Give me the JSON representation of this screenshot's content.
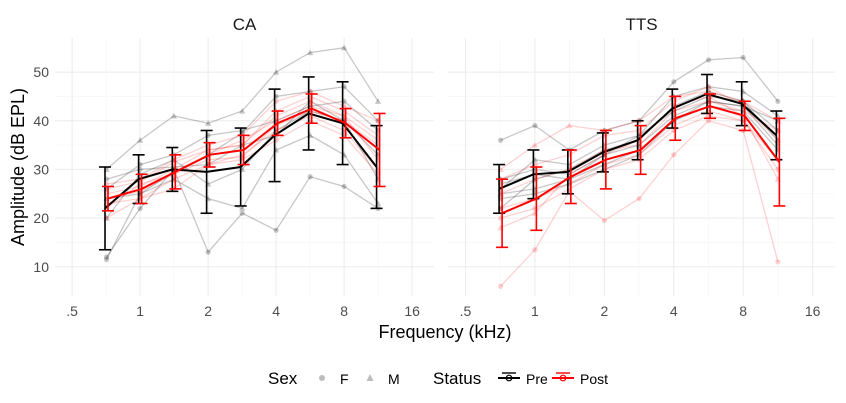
{
  "chart_data": {
    "type": "line",
    "xlabel": "Frequency (kHz)",
    "ylabel": "Amplitude (dB EPL)",
    "x_scale": "log2",
    "xlim": [
      0.42,
      20
    ],
    "ylim": [
      4,
      57
    ],
    "x_ticks": [
      0.5,
      1,
      2,
      4,
      8,
      16
    ],
    "x_tick_labels": [
      ".5",
      "1",
      "2",
      "4",
      "8",
      "16"
    ],
    "y_ticks": [
      10,
      20,
      30,
      40,
      50
    ],
    "y_tick_labels": [
      "10",
      "20",
      "30",
      "40",
      "50"
    ],
    "grid": true,
    "legend_position": "bottom",
    "legend": {
      "sex_title": "Sex",
      "sex_items": [
        {
          "label": "F",
          "shape": "circle"
        },
        {
          "label": "M",
          "shape": "triangle"
        }
      ],
      "status_title": "Status",
      "status_items": [
        {
          "label": "Pre",
          "color": "#000000"
        },
        {
          "label": "Post",
          "color": "#ff0000"
        }
      ]
    },
    "colors": {
      "pre": "#000000",
      "post": "#ff0000"
    },
    "x": [
      0.71,
      1,
      1.41,
      2,
      2.83,
      4,
      5.66,
      8,
      11.31
    ],
    "panels": [
      {
        "title": "CA",
        "mean_pre": [
          22,
          28,
          30,
          29.5,
          30.5,
          37,
          41.5,
          39.5,
          30.5
        ],
        "err_pre": [
          8.5,
          5,
          4.5,
          8.5,
          8,
          9.5,
          7.5,
          8.5,
          8.5
        ],
        "mean_post": [
          24,
          26,
          29.5,
          33,
          34,
          39.5,
          42.5,
          39.5,
          34
        ],
        "err_post": [
          2.5,
          3,
          3.5,
          2.5,
          3,
          2.5,
          3,
          3,
          7.5
        ],
        "subjects_pre": [
          [
            12,
            22,
            30,
            13,
            21,
            17.5,
            28.5,
            26.5,
            22
          ],
          [
            30,
            36,
            41,
            39.5,
            42,
            50,
            54,
            55,
            44
          ],
          [
            11.5,
            25,
            29.5,
            33,
            37.5,
            45,
            46,
            47,
            40
          ],
          [
            20,
            29,
            32,
            27,
            30,
            38,
            42,
            40,
            28
          ],
          [
            26,
            31,
            33,
            37,
            38,
            40,
            43,
            44,
            38
          ],
          [
            24,
            25,
            28,
            24,
            22,
            34,
            37,
            33,
            23
          ],
          [
            28,
            30,
            30.5,
            31,
            35,
            37,
            44,
            40,
            33
          ]
        ],
        "subjects_post": [
          [
            20,
            24,
            26,
            31,
            32,
            36,
            40,
            37,
            29
          ],
          [
            26,
            27.5,
            31.5,
            34,
            35,
            42,
            45,
            42,
            37
          ],
          [
            24,
            25.5,
            29,
            32,
            32.5,
            39,
            42,
            40,
            35
          ],
          [
            22,
            27,
            29,
            33,
            36,
            40,
            43,
            41,
            32
          ],
          [
            27,
            28,
            32,
            35,
            37,
            44,
            46,
            43,
            40
          ],
          [
            23,
            24,
            28,
            31,
            33,
            38,
            41,
            38,
            30
          ],
          [
            25,
            26.5,
            30,
            34,
            35,
            41,
            44,
            41,
            36
          ]
        ]
      },
      {
        "title": "TTS",
        "mean_pre": [
          26,
          29,
          29.5,
          33.5,
          36,
          42.5,
          45.5,
          43.5,
          37
        ],
        "err_pre": [
          5,
          5,
          4.5,
          4,
          4,
          4,
          4,
          4.5,
          5
        ],
        "mean_post": [
          21,
          24,
          28.5,
          32,
          34,
          40.5,
          43,
          41,
          31.5
        ],
        "err_post": [
          7,
          6.5,
          5.5,
          6,
          5,
          4.5,
          2.5,
          3,
          9
        ],
        "subjects_pre": [
          [
            36,
            39,
            34,
            38,
            40,
            48,
            52.5,
            53,
            44
          ],
          [
            25,
            26,
            28,
            31,
            34,
            40,
            44,
            43,
            40
          ],
          [
            22,
            28,
            30,
            34,
            36,
            43,
            46,
            44,
            38
          ],
          [
            28,
            30,
            29,
            33,
            37,
            42,
            45,
            44,
            36
          ],
          [
            24,
            25,
            27,
            30,
            33,
            40,
            43,
            42,
            34
          ],
          [
            26,
            32,
            31,
            35,
            37,
            45,
            47,
            46,
            41
          ],
          [
            27,
            29,
            28,
            33,
            35,
            41,
            44,
            43,
            35
          ]
        ],
        "subjects_post": [
          [
            6,
            13.5,
            25.5,
            19.5,
            24,
            33,
            40,
            38,
            11
          ],
          [
            30,
            35,
            39,
            38,
            40,
            45,
            46,
            44,
            40
          ],
          [
            20,
            22,
            26,
            30,
            32,
            38,
            41,
            40,
            30
          ],
          [
            25,
            28,
            30,
            34,
            35,
            42,
            44,
            42,
            38
          ],
          [
            22,
            24,
            27,
            31,
            33,
            39,
            42,
            40,
            32
          ],
          [
            18,
            21,
            29,
            33,
            36,
            43,
            45,
            41,
            28
          ],
          [
            28,
            31,
            33,
            37,
            38,
            44,
            47,
            43,
            36
          ]
        ]
      }
    ]
  }
}
